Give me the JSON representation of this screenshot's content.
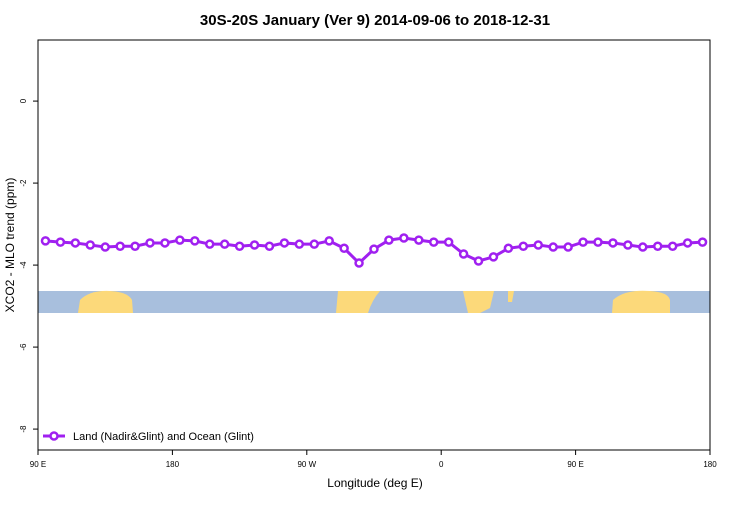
{
  "chart_data": {
    "type": "line",
    "title": "30S-20S January (Ver 9)   2014-09-06 to 2018-12-31",
    "x_label": "Longitude (deg E)",
    "y_label": "XCO2 - MLO trend (ppm)",
    "x": [
      95,
      105,
      115,
      125,
      135,
      145,
      155,
      165,
      175,
      185,
      195,
      205,
      215,
      225,
      235,
      245,
      255,
      265,
      275,
      285,
      295,
      305,
      315,
      325,
      335,
      345,
      355,
      365,
      375,
      385,
      395,
      405,
      415,
      425,
      435,
      445,
      455,
      465,
      475,
      485,
      495,
      505,
      515,
      525,
      535
    ],
    "series": [
      {
        "name": "Land (Nadir&Glint) and Ocean (Glint)",
        "color": "#a020f0",
        "values": [
          -3.41,
          -3.44,
          -3.46,
          -3.51,
          -3.56,
          -3.54,
          -3.54,
          -3.46,
          -3.46,
          -3.39,
          -3.41,
          -3.49,
          -3.49,
          -3.54,
          -3.51,
          -3.54,
          -3.46,
          -3.49,
          -3.49,
          -3.41,
          -3.59,
          -3.95,
          -3.61,
          -3.39,
          -3.34,
          -3.39,
          -3.44,
          -3.44,
          -3.73,
          -3.9,
          -3.8,
          -3.59,
          -3.54,
          -3.51,
          -3.56,
          -3.56,
          -3.44,
          -3.44,
          -3.46,
          -3.51,
          -3.56,
          -3.54,
          -3.54,
          -3.46,
          -3.44
        ]
      }
    ],
    "xlim": [
      90,
      540
    ],
    "xticks": [
      {
        "value": 90,
        "label": "90 E"
      },
      {
        "value": 180,
        "label": "180"
      },
      {
        "value": 270,
        "label": "90 W"
      },
      {
        "value": 360,
        "label": "0"
      },
      {
        "value": 450,
        "label": "90 E"
      },
      {
        "value": 540,
        "label": "180"
      }
    ],
    "ylim": [
      -8.51,
      1.49
    ],
    "yticks": [
      0,
      -2,
      -4,
      -6,
      -8
    ],
    "legend": "bottom-left"
  }
}
